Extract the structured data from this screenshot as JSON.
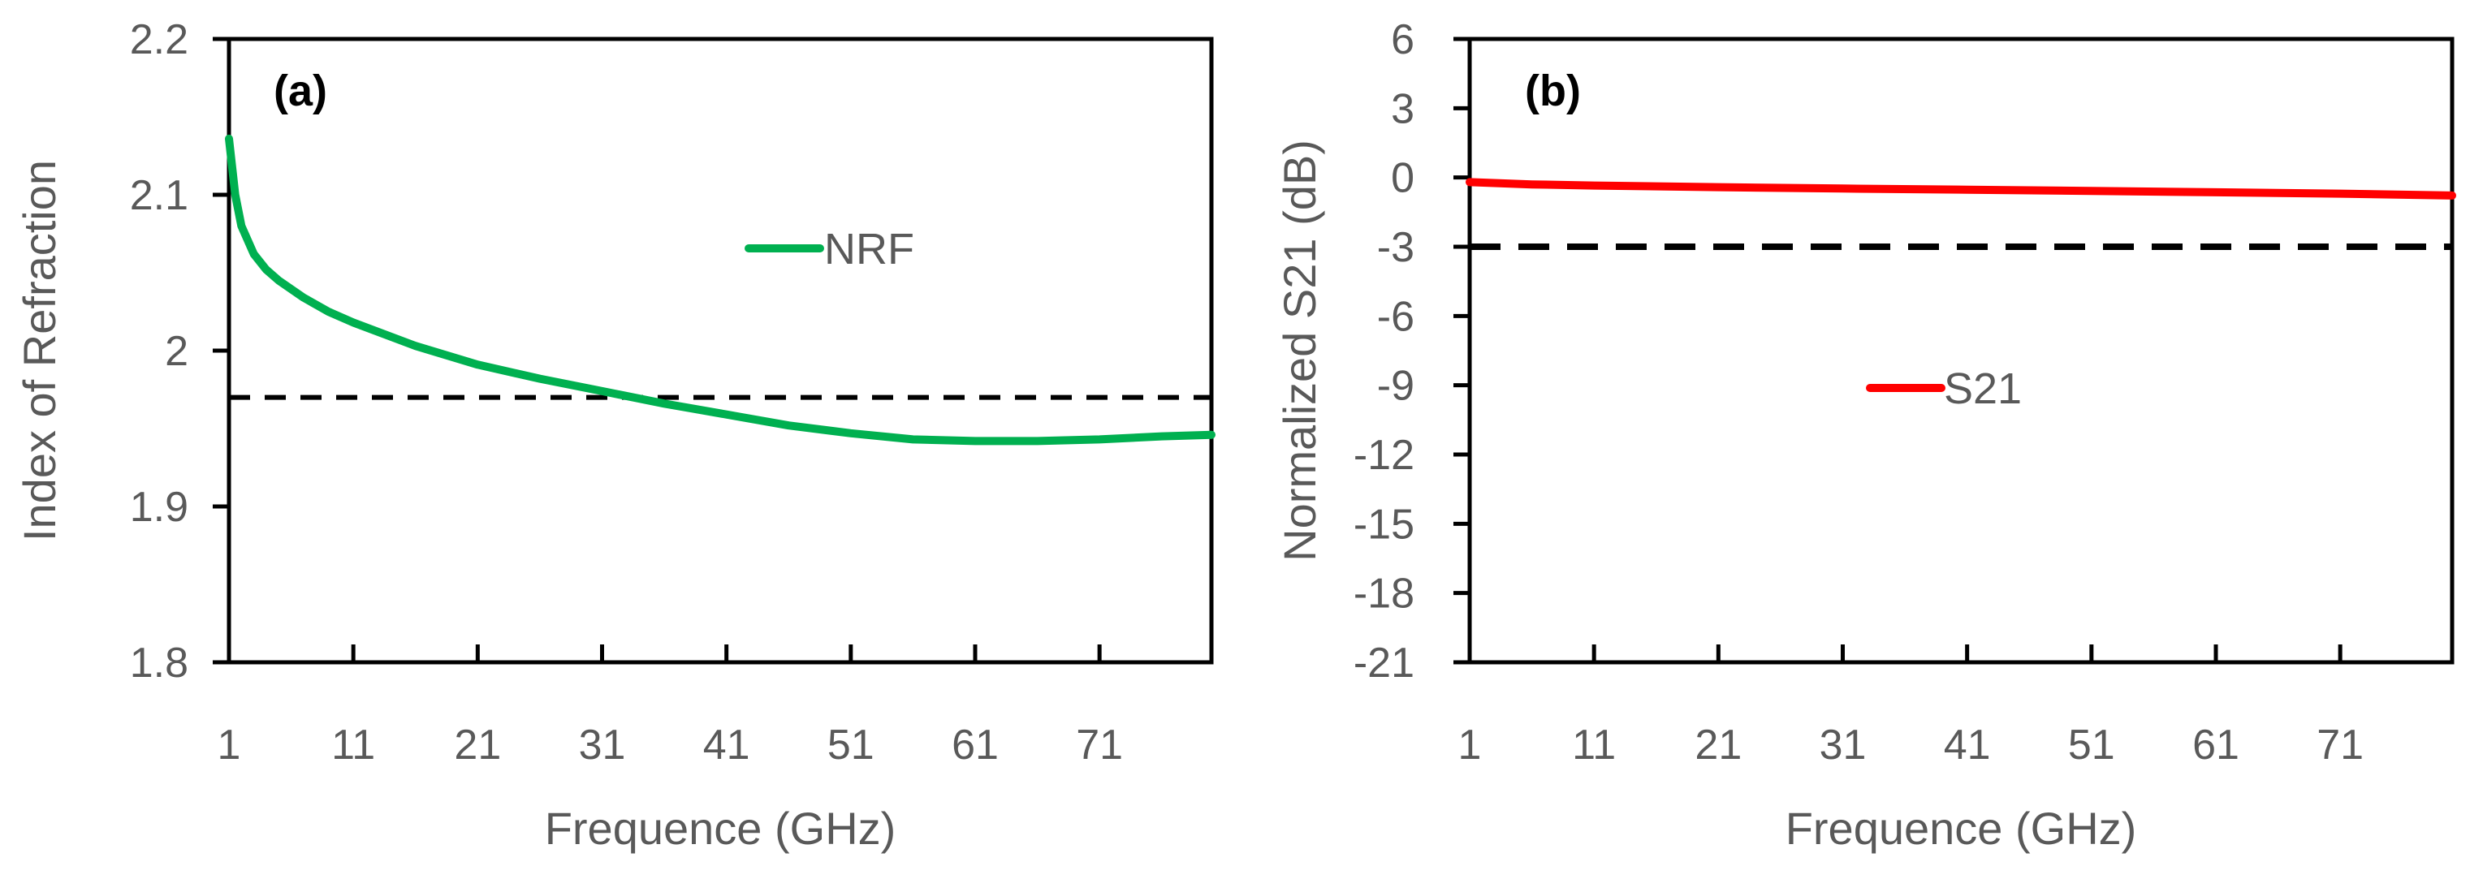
{
  "chart_data": [
    {
      "type": "line",
      "panel_label": "(a)",
      "xlabel": "Frequence (GHz)",
      "ylabel": "Index of Refraction",
      "xlim": [
        1,
        80
      ],
      "ylim": [
        1.8,
        2.2
      ],
      "xticks": [
        1,
        11,
        21,
        31,
        41,
        51,
        61,
        71
      ],
      "yticks": [
        1.8,
        1.9,
        2,
        2.1,
        2.2
      ],
      "ytick_labels": [
        "1.8",
        "1.9",
        "2",
        "2.1",
        "2.2"
      ],
      "grid": false,
      "legend_position": "upper-middle",
      "series": [
        {
          "name": "NRF",
          "color": "#00b050",
          "x": [
            1,
            1.5,
            2,
            3,
            4,
            5,
            7,
            9,
            11,
            16,
            21,
            26,
            31,
            36,
            41,
            46,
            51,
            56,
            61,
            66,
            71,
            76,
            80
          ],
          "y": [
            2.136,
            2.1,
            2.08,
            2.062,
            2.052,
            2.045,
            2.034,
            2.025,
            2.018,
            2.003,
            1.991,
            1.982,
            1.974,
            1.966,
            1.959,
            1.952,
            1.947,
            1.943,
            1.942,
            1.942,
            1.943,
            1.945,
            1.946
          ]
        }
      ],
      "reference_line": {
        "y": 1.97,
        "style": "dashed",
        "color": "#000000"
      }
    },
    {
      "type": "line",
      "panel_label": "(b)",
      "xlabel": "Frequence (GHz)",
      "ylabel": "Normalized S21 (dB)",
      "xlim": [
        1,
        80
      ],
      "ylim": [
        -21,
        6
      ],
      "xticks": [
        1,
        11,
        21,
        31,
        41,
        51,
        61,
        71
      ],
      "yticks": [
        -21,
        -18,
        -15,
        -12,
        -9,
        -6,
        -3,
        0,
        3,
        6
      ],
      "ytick_labels": [
        "-21",
        "-18",
        "-15",
        "-12",
        "-9",
        "-6",
        "-3",
        "0",
        "3",
        "6"
      ],
      "grid": false,
      "legend_position": "middle",
      "series": [
        {
          "name": "S21",
          "color": "#ff0000",
          "x": [
            1,
            6,
            11,
            21,
            31,
            41,
            51,
            61,
            71,
            80
          ],
          "y": [
            -0.2,
            -0.3,
            -0.35,
            -0.42,
            -0.48,
            -0.53,
            -0.58,
            -0.64,
            -0.7,
            -0.78
          ]
        }
      ],
      "reference_line": {
        "y": -3,
        "style": "dashed",
        "color": "#000000"
      }
    }
  ]
}
